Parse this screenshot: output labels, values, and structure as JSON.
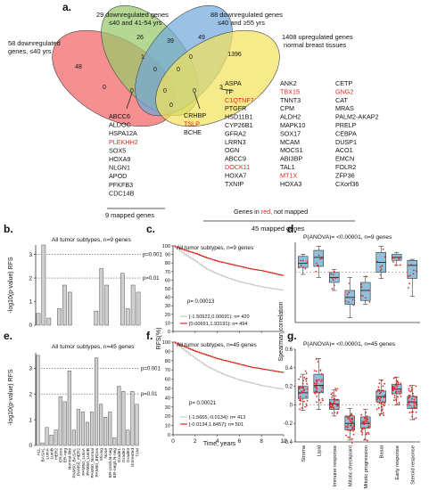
{
  "panel_letters": {
    "a": "a.",
    "b": "b.",
    "c": "c.",
    "d": "d.",
    "e": "e.",
    "f": "f.",
    "g": "g."
  },
  "venn": {
    "labels": {
      "set1": [
        "29 downregulated genes",
        "≤40 and 41-54 yrs"
      ],
      "set2": [
        "88 downregulated genes",
        "≤40 and ≥55 yrs"
      ],
      "set3": [
        "1408 upregulated genes",
        "normal breast tissues"
      ],
      "set4": [
        "58 downregulated",
        "genes, ≤40 yrs"
      ]
    },
    "counts": {
      "c26": "26",
      "c49": "49",
      "c39": "39",
      "c1396": "1396",
      "c48": "48",
      "c1a": "1",
      "c0a": "0",
      "c0b": "0",
      "c3": "3",
      "c0c": "0",
      "c0d": "0",
      "c0e": "0",
      "c0f": "0",
      "c0g": "0",
      "c0h": "0"
    }
  },
  "gene_lists": {
    "left": [
      "ABCC6",
      "ALDOC",
      "HSPA12A",
      "PLEKHH2",
      "SOX5",
      "HOXA9",
      "NLGN1",
      "APOD",
      "PFKFB3",
      "CDC14B"
    ],
    "left_red": [
      false,
      false,
      false,
      true,
      false,
      false,
      false,
      false,
      false,
      false
    ],
    "mid": [
      "CRHBP",
      "TSLP",
      "BCHE"
    ],
    "mid_red": [
      false,
      true,
      false
    ],
    "nine_mapped": "9 mapped genes",
    "col1": [
      "ASPA",
      "TF",
      "C1QTNF7",
      "PTGFR",
      "HSD11B1",
      "CYP26B1",
      "GFRA2",
      "LRRN3",
      "OGN",
      "ABCC9",
      "DOCK11",
      "HOXA7",
      "TXNIP"
    ],
    "col1_red": [
      false,
      false,
      true,
      false,
      false,
      false,
      false,
      false,
      false,
      false,
      true,
      false,
      false
    ],
    "col2": [
      "ANK2",
      "TBX15",
      "TNNT3",
      "CPM",
      "ALDH2",
      "MAPK10",
      "SOX17",
      "MCAM",
      "MOCS1",
      "ABI3BP",
      "TAL1",
      "MT1X",
      "HOXA3"
    ],
    "col2_red": [
      false,
      true,
      false,
      false,
      false,
      false,
      false,
      false,
      false,
      false,
      false,
      true,
      false
    ],
    "col3": [
      "CETP",
      "GNG2",
      "CAT",
      "MRAS",
      "PALM2-AKAP2",
      "PRELP",
      "CEBPA",
      "DUSP1",
      "ACO1",
      "EMCN",
      "FOLR2",
      "ZFP36",
      "CXorf36"
    ],
    "col3_red": [
      false,
      true,
      false,
      false,
      false,
      false,
      false,
      false,
      false,
      false,
      false,
      false,
      false
    ],
    "note_prefix": "Genes in ",
    "note_red": "red",
    "note_suffix": ", not mapped",
    "forty_five": "45 mapped genes"
  },
  "chart_data": [
    {
      "id": "b",
      "type": "bar",
      "title": "All tumor subtypes, n=9 genes",
      "ylabel": "-log10(p-value) RFS",
      "ylim": [
        0,
        3.4
      ],
      "yticks": [
        "0",
        "1",
        "2",
        "3"
      ],
      "reference_lines": [
        {
          "y": 3,
          "label": "p=0.001"
        },
        {
          "y": 2,
          "label": "p=0.01"
        }
      ],
      "values": [
        0.5,
        3.4,
        0.3,
        0,
        0.7,
        1.7,
        1.4,
        0,
        0,
        0,
        0,
        0.6,
        2.4,
        1.7,
        0,
        0,
        2.2,
        0.7,
        1.7,
        1.4
      ]
    },
    {
      "id": "e",
      "type": "bar",
      "title": "All tumor subtypes, n=45 genes",
      "ylabel": "-log10(p-value) RFS",
      "ylim": [
        0,
        3.6
      ],
      "yticks": [
        "0",
        "1",
        "2",
        "3"
      ],
      "reference_lines": [
        {
          "y": 3,
          "label": "p=0.001"
        },
        {
          "y": 2,
          "label": "p=0.01"
        }
      ],
      "categories": [
        "ALL",
        "BASAL",
        "LumA",
        "LumB",
        "HER2",
        "ER-pos",
        "ER-neg",
        "Normal-like",
        "PAM50_BASAL",
        "PAM50_HER2",
        "PAM50_LumA",
        "PAM50_LumB",
        "PAM50_Normal",
        "PAM50_ERpos",
        "Mixing",
        "None",
        "ER-pos/LN-neg",
        "ER-neg/LN-neg",
        "Grade1",
        "Grade2",
        "Grade3",
        "Untreated",
        "TAM"
      ],
      "values": [
        3.5,
        0.1,
        0.7,
        0.4,
        0.6,
        1.9,
        1.7,
        2.9,
        0.6,
        1.4,
        1.3,
        0.9,
        1.3,
        3.4,
        1.6,
        1.1,
        1.3,
        0.3,
        2.3,
        2.1,
        0.6,
        2.1,
        1.6
      ]
    },
    {
      "id": "c",
      "type": "line",
      "title": "All tumor subtypes, n=9 genes",
      "ylabel": "RFS(%)",
      "xlim": [
        0,
        10
      ],
      "ylim": [
        0,
        100
      ],
      "xticks": [
        "0",
        "2",
        "4",
        "6",
        "8",
        "10"
      ],
      "yticks": [
        "0",
        "10",
        "20",
        "30",
        "40",
        "50",
        "60",
        "70",
        "80",
        "90",
        "100"
      ],
      "pvalue": "p= 0.00013",
      "series": [
        {
          "name": "[-1.50922,0.00691): n= 420",
          "color": "#c8c8c8",
          "x": [
            0,
            1,
            2,
            3,
            4,
            5,
            6,
            7,
            8,
            9,
            10
          ],
          "y": [
            100,
            90,
            82,
            73,
            67,
            62,
            58,
            55,
            52,
            50,
            48
          ]
        },
        {
          "name": "[0.00691,1.93191]: n= 494",
          "color": "#e0271f",
          "x": [
            0,
            1,
            2,
            3,
            4,
            5,
            6,
            7,
            8,
            9,
            10
          ],
          "y": [
            100,
            95,
            91,
            86,
            82,
            79,
            76,
            73,
            71,
            68,
            65
          ]
        }
      ]
    },
    {
      "id": "f",
      "type": "line",
      "title": "All tumor subtypes, n=45 genes",
      "xlabel": "Time, years",
      "ylabel": "RFS(%)",
      "xlim": [
        0,
        10
      ],
      "ylim": [
        0,
        100
      ],
      "xticks": [
        "0",
        "2",
        "4",
        "6",
        "8",
        "10"
      ],
      "yticks": [
        "0",
        "10",
        "20",
        "30",
        "40",
        "50",
        "60",
        "70",
        "80",
        "90",
        "100"
      ],
      "pvalue": "p= 0.00021",
      "series": [
        {
          "name": "[-1.5665,-0.0134): n= 413",
          "color": "#c8c8c8",
          "x": [
            0,
            1,
            2,
            3,
            4,
            5,
            6,
            7,
            8,
            9,
            10
          ],
          "y": [
            100,
            91,
            82,
            74,
            68,
            63,
            59,
            56,
            53,
            51,
            49
          ]
        },
        {
          "name": "[-0.0134,1.8457]: n= 501",
          "color": "#e0271f",
          "x": [
            0,
            1,
            2,
            3,
            4,
            5,
            6,
            7,
            8,
            9,
            10
          ],
          "y": [
            100,
            95,
            90,
            86,
            82,
            79,
            76,
            73,
            71,
            69,
            67
          ]
        }
      ]
    },
    {
      "id": "d",
      "type": "box",
      "title": "P(ANOVA)= <0.00001, n=9 genes",
      "ylabel": "Spearman correlation",
      "boxes": [
        {
          "q1": 0.05,
          "med": 0.09,
          "q3": 0.16,
          "lo": -0.02,
          "hi": 0.18
        },
        {
          "q1": 0.06,
          "med": 0.15,
          "q3": 0.22,
          "lo": -0.05,
          "hi": 0.26
        },
        {
          "q1": -0.1,
          "med": -0.05,
          "q3": 0.0,
          "lo": -0.18,
          "hi": 0.03
        },
        {
          "q1": -0.32,
          "med": -0.25,
          "q3": -0.18,
          "lo": -0.45,
          "hi": -0.05
        },
        {
          "q1": -0.28,
          "med": -0.18,
          "q3": -0.1,
          "lo": -0.32,
          "hi": -0.04
        },
        {
          "q1": 0.0,
          "med": 0.1,
          "q3": 0.2,
          "lo": -0.06,
          "hi": 0.26
        },
        {
          "q1": 0.12,
          "med": 0.15,
          "q3": 0.18,
          "lo": 0.07,
          "hi": 0.2
        },
        {
          "q1": -0.06,
          "med": 0.07,
          "q3": 0.12,
          "lo": -0.24,
          "hi": 0.13
        }
      ]
    },
    {
      "id": "g",
      "type": "box",
      "title": "P(ANOVA)= <0.00001, n=45 genes",
      "ylabel": "Spearman correlation",
      "ylim": [
        -0.4,
        0.6
      ],
      "yticks": [
        "-0.4",
        "-0.2",
        "0",
        "0.2",
        "0.4",
        "0.6"
      ],
      "categories": [
        "Stroma",
        "Lipid",
        "Immune response",
        "Mitotic checkpoint",
        "Mitotic progression",
        "Basal",
        "Early response",
        "Steroid response"
      ],
      "boxes": [
        {
          "q1": 0.07,
          "med": 0.13,
          "q3": 0.2,
          "lo": -0.06,
          "hi": 0.33
        },
        {
          "q1": 0.13,
          "med": 0.21,
          "q3": 0.33,
          "lo": -0.05,
          "hi": 0.5
        },
        {
          "q1": -0.05,
          "med": 0.01,
          "q3": 0.06,
          "lo": -0.12,
          "hi": 0.16
        },
        {
          "q1": -0.27,
          "med": -0.2,
          "q3": -0.12,
          "lo": -0.38,
          "hi": -0.04
        },
        {
          "q1": -0.25,
          "med": -0.2,
          "q3": -0.13,
          "lo": -0.38,
          "hi": -0.05
        },
        {
          "q1": 0.03,
          "med": 0.09,
          "q3": 0.15,
          "lo": -0.1,
          "hi": 0.27
        },
        {
          "q1": 0.12,
          "med": 0.17,
          "q3": 0.22,
          "lo": 0.0,
          "hi": 0.3
        },
        {
          "q1": -0.04,
          "med": 0.03,
          "q3": 0.09,
          "lo": -0.16,
          "hi": 0.21
        }
      ]
    }
  ]
}
